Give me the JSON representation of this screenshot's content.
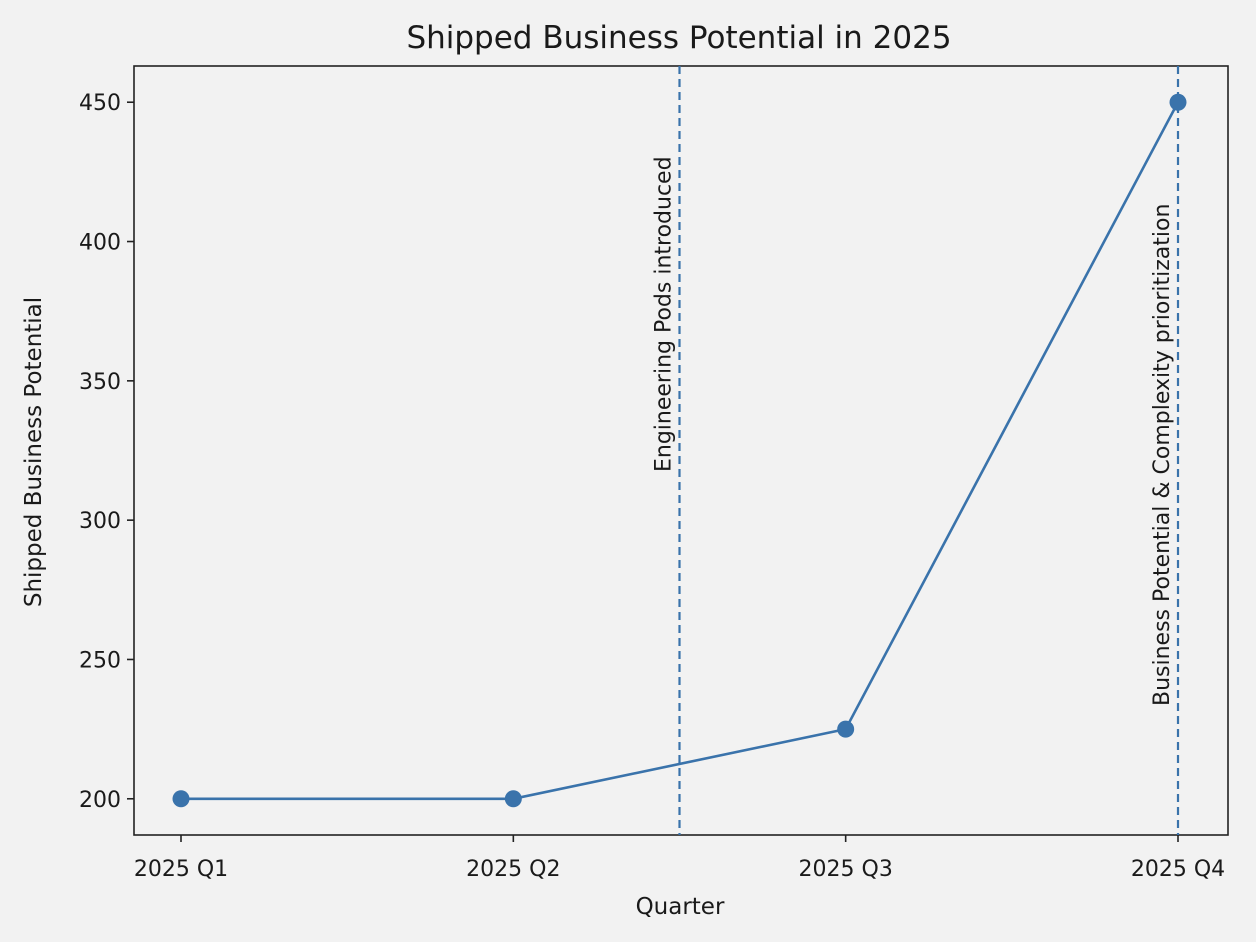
{
  "chart_data": {
    "type": "line",
    "title": "Shipped Business Potential in 2025",
    "xlabel": "Quarter",
    "ylabel": "Shipped Business Potential",
    "categories": [
      "2025 Q1",
      "2025 Q2",
      "2025 Q3",
      "2025 Q4"
    ],
    "series": [
      {
        "values": [
          200,
          200,
          225,
          450
        ],
        "color": "#3a73ab"
      }
    ],
    "yticks": [
      200,
      250,
      300,
      350,
      400,
      450
    ],
    "ylim": [
      187,
      463
    ],
    "annotations": [
      {
        "x": 1.5,
        "label": "Engineering Pods introduced",
        "style": "dashed"
      },
      {
        "x": 3,
        "label": "Business Potential & Complexity prioritization",
        "style": "dashed"
      }
    ],
    "grid": false,
    "legend": "none"
  }
}
